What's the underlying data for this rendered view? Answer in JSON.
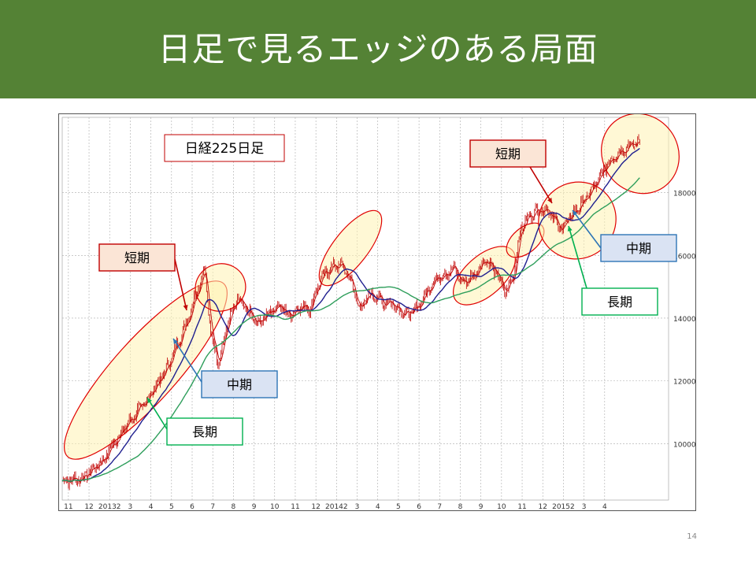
{
  "slide": {
    "title": "日足で見るエッジのある局面",
    "page_number": "14",
    "header_color": "#548235"
  },
  "chart_data": {
    "type": "line",
    "title": "日経225日足",
    "xlabel": "",
    "ylabel": "",
    "ylim": [
      8200,
      20400
    ],
    "y_ticks": [
      10000,
      12000,
      14000,
      16000,
      18000
    ],
    "y_tick_labels": [
      "10000",
      "12000",
      "14000",
      "16000",
      "18000"
    ],
    "grid": true,
    "x_tick_labels": [
      "11",
      "12",
      "20132",
      "3",
      "4",
      "5",
      "6",
      "7",
      "8",
      "9",
      "10",
      "11",
      "12",
      "20142",
      "3",
      "4",
      "5",
      "6",
      "7",
      "8",
      "9",
      "10",
      "11",
      "12",
      "20152",
      "3",
      "4"
    ],
    "x_months": [
      0.3,
      1.3,
      2.3,
      3.3,
      4.3,
      5.3,
      6.3,
      7.3,
      8.3,
      9.3,
      10.3,
      11.3,
      12.3,
      13.3,
      14.3,
      15.3,
      16.3,
      17.3,
      18.3,
      19.3,
      20.3,
      21.3,
      22.3,
      23.3,
      24.3,
      25.3,
      26.3
    ],
    "x_range_months": [
      0,
      29.4
    ],
    "price_anchors": [
      [
        0,
        8800
      ],
      [
        1,
        8900
      ],
      [
        2,
        9500
      ],
      [
        3,
        10500
      ],
      [
        4,
        11300
      ],
      [
        5,
        12300
      ],
      [
        6,
        13800
      ],
      [
        6.9,
        15600
      ],
      [
        7.2,
        13500
      ],
      [
        7.6,
        12600
      ],
      [
        8,
        13800
      ],
      [
        8.5,
        14600
      ],
      [
        9,
        14200
      ],
      [
        9.5,
        13800
      ],
      [
        10,
        14200
      ],
      [
        10.5,
        14400
      ],
      [
        11,
        14100
      ],
      [
        11.6,
        14400
      ],
      [
        12,
        14300
      ],
      [
        12.5,
        15200
      ],
      [
        13,
        15600
      ],
      [
        13.5,
        15700
      ],
      [
        14,
        15200
      ],
      [
        14.4,
        14300
      ],
      [
        15,
        14800
      ],
      [
        15.6,
        14500
      ],
      [
        16,
        14500
      ],
      [
        16.7,
        14100
      ],
      [
        17.2,
        14300
      ],
      [
        18,
        15200
      ],
      [
        18.5,
        15400
      ],
      [
        19,
        15600
      ],
      [
        19.4,
        15100
      ],
      [
        20,
        15400
      ],
      [
        20.5,
        15900
      ],
      [
        21,
        15500
      ],
      [
        21.5,
        14800
      ],
      [
        21.9,
        15400
      ],
      [
        22.2,
        16800
      ],
      [
        22.7,
        17300
      ],
      [
        23.2,
        17500
      ],
      [
        23.7,
        17400
      ],
      [
        24.1,
        16800
      ],
      [
        24.5,
        17100
      ],
      [
        25,
        17500
      ],
      [
        25.5,
        17900
      ],
      [
        26,
        18400
      ],
      [
        26.5,
        19000
      ],
      [
        27,
        19300
      ],
      [
        27.5,
        19500
      ],
      [
        28,
        19600
      ]
    ],
    "series": [
      {
        "color": "#c00000",
        "values": []
      },
      {
        "color": "#1f1f8f",
        "values": []
      },
      {
        "color": "#2e9e5b",
        "values": []
      }
    ],
    "annotations": [
      {
        "label": "短期",
        "color": "#c00000"
      },
      {
        "label": "中期",
        "color": "#2e75b6"
      },
      {
        "label": "長期",
        "color": "#00b050"
      },
      {
        "label": "短期",
        "color": "#c00000"
      },
      {
        "label": "中期",
        "color": "#2e75b6"
      },
      {
        "label": "長期",
        "color": "#00b050"
      }
    ]
  }
}
